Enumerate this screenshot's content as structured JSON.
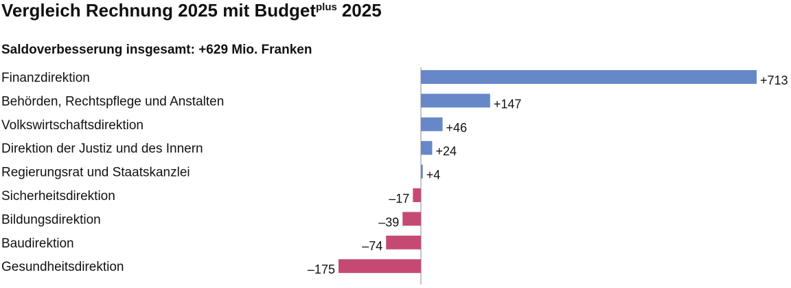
{
  "chart_data": {
    "type": "bar",
    "orientation": "horizontal",
    "title": {
      "text": "Vergleich Rechnung 2025 mit Budget",
      "superscript": "plus",
      "suffix": "2025"
    },
    "subtitle": "Saldoverbesserung insgesamt: +629 Mio. Franken",
    "categories": [
      "Finanzdirektion",
      "Behörden, Rechtspflege und Anstalten",
      "Volkswirtschaftsdirektion",
      "Direktion der Justiz und des Innern",
      "Regierungsrat und Staatskanzlei",
      "Sicherheitsdirektion",
      "Bildungsdirektion",
      "Baudirektion",
      "Gesundheitsdirektion"
    ],
    "values": [
      713,
      147,
      46,
      24,
      4,
      -17,
      -39,
      -74,
      -175
    ],
    "value_labels": [
      "+713",
      "+147",
      "+46",
      "+24",
      "+4",
      "–17",
      "–39",
      "–74",
      "–175"
    ],
    "positive_color": "#6688c8",
    "negative_color": "#c44a74"
  }
}
